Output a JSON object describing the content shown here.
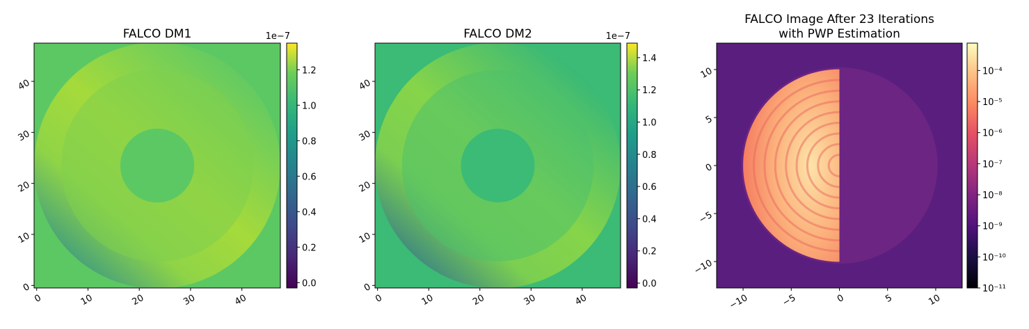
{
  "chart_data": [
    {
      "type": "heatmap",
      "title": [
        "FALCO DM1"
      ],
      "xlim": [
        -0.5,
        47.5
      ],
      "ylim": [
        -0.5,
        47.5
      ],
      "xticks": [
        0,
        10,
        20,
        30,
        40
      ],
      "yticks": [
        0,
        10,
        20,
        30,
        40
      ],
      "colorbar": {
        "colormap": "viridis",
        "scale": "linear",
        "lim": [
          -0.03,
          1.35
        ],
        "offset_label": "1e−7",
        "ticks": [
          {
            "value": 0,
            "label": "0.0"
          },
          {
            "value": 0.2,
            "label": "0.2"
          },
          {
            "value": 0.4,
            "label": "0.4"
          },
          {
            "value": 0.6,
            "label": "0.6"
          },
          {
            "value": 0.8,
            "label": "0.8"
          },
          {
            "value": 1,
            "label": "1.0"
          },
          {
            "value": 1.2,
            "label": "1.2"
          }
        ]
      }
    },
    {
      "type": "heatmap",
      "title": [
        "FALCO DM2"
      ],
      "xlim": [
        -0.5,
        47.5
      ],
      "ylim": [
        -0.5,
        47.5
      ],
      "xticks": [
        0,
        10,
        20,
        30,
        40
      ],
      "yticks": [
        0,
        10,
        20,
        30,
        40
      ],
      "colorbar": {
        "colormap": "viridis",
        "scale": "linear",
        "lim": [
          -0.03,
          1.49
        ],
        "offset_label": "1e−7",
        "ticks": [
          {
            "value": 0,
            "label": "0.0"
          },
          {
            "value": 0.2,
            "label": "0.2"
          },
          {
            "value": 0.4,
            "label": "0.4"
          },
          {
            "value": 0.6,
            "label": "0.6"
          },
          {
            "value": 0.8,
            "label": "0.8"
          },
          {
            "value": 1,
            "label": "1.0"
          },
          {
            "value": 1.2,
            "label": "1.2"
          },
          {
            "value": 1.4,
            "label": "1.4"
          }
        ]
      }
    },
    {
      "type": "image",
      "title": [
        "FALCO Image After 23 Iterations",
        "with PWP Estimation"
      ],
      "xlim": [
        -12.75,
        12.75
      ],
      "ylim": [
        -12.75,
        12.75
      ],
      "xticks": [
        {
          "value": -10,
          "label": "−10"
        },
        {
          "value": -5,
          "label": "−5"
        },
        0,
        5,
        10
      ],
      "yticks": [
        {
          "value": -10,
          "label": "−10"
        },
        {
          "value": -5,
          "label": "−5"
        },
        0,
        5,
        10
      ],
      "colorbar": {
        "colormap": "magma",
        "scale": "log",
        "lim": [
          1e-11,
          0.00076
        ],
        "ticks": [
          {
            "value": 1e-11,
            "label": "10⁻¹¹"
          },
          {
            "value": 1e-10,
            "label": "10⁻¹⁰"
          },
          {
            "value": 1e-09,
            "label": "10⁻⁹"
          },
          {
            "value": 1e-08,
            "label": "10⁻⁸"
          },
          {
            "value": 1e-07,
            "label": "10⁻⁷"
          },
          {
            "value": 1e-06,
            "label": "10⁻⁶"
          },
          {
            "value": 1e-05,
            "label": "10⁻⁵"
          },
          {
            "value": 0.0001,
            "label": "10⁻⁴"
          }
        ]
      }
    }
  ]
}
